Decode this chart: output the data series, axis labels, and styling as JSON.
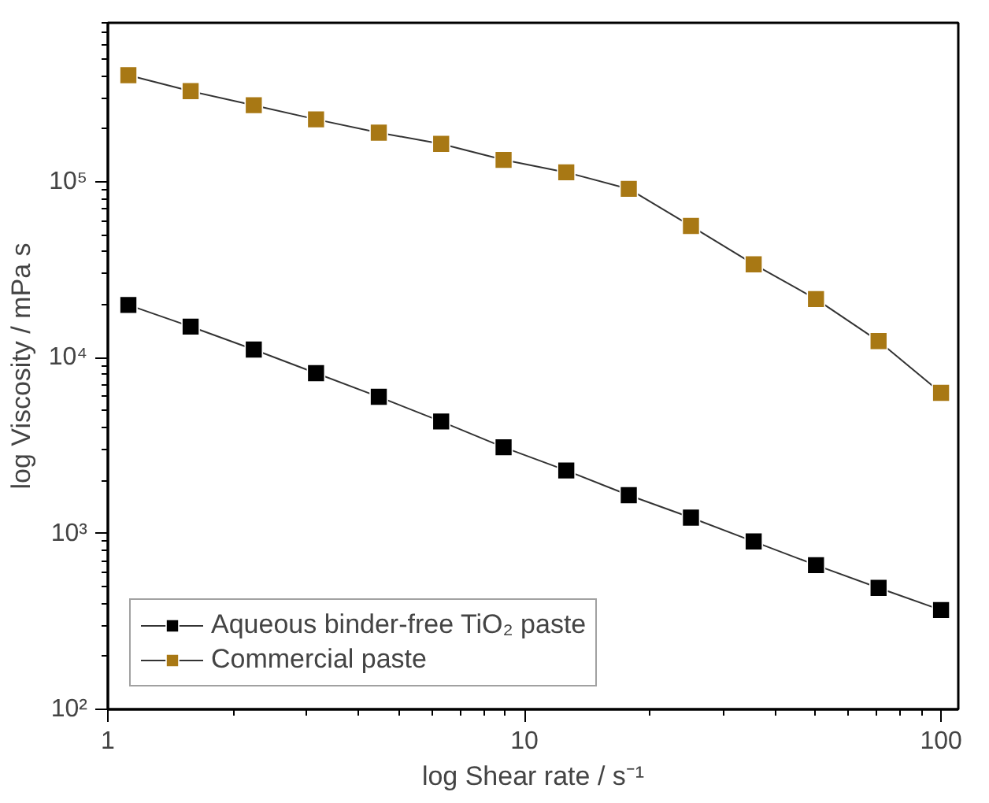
{
  "chart_data": {
    "type": "line",
    "xlabel": "log Shear rate / s⁻¹",
    "ylabel": "log Viscosity / mPa s",
    "log": "xy",
    "grid": false,
    "legend": "bottom left",
    "marker": "square",
    "line_style": "solid",
    "x": [
      1.12,
      1.58,
      2.24,
      3.16,
      4.47,
      6.31,
      8.91,
      12.6,
      17.8,
      25.1,
      35.5,
      50.1,
      70.8,
      100
    ],
    "xlim": [
      1,
      110
    ],
    "ylim": [
      100,
      800000
    ],
    "xticks": [
      1,
      10,
      100,
      {
        "value": 2,
        "label": null
      },
      {
        "value": 3,
        "label": null
      },
      {
        "value": 4,
        "label": null
      },
      {
        "value": 5,
        "label": null
      },
      {
        "value": 6,
        "label": null
      },
      {
        "value": 7,
        "label": null
      },
      {
        "value": 8,
        "label": null
      },
      {
        "value": 9,
        "label": null
      },
      {
        "value": 20,
        "label": null
      },
      {
        "value": 30,
        "label": null
      },
      {
        "value": 40,
        "label": null
      },
      {
        "value": 50,
        "label": null
      },
      {
        "value": 60,
        "label": null
      },
      {
        "value": 70,
        "label": null
      },
      {
        "value": 80,
        "label": null
      },
      {
        "value": 90,
        "label": null
      }
    ],
    "yticks": [
      {
        "value": 100,
        "label": "10²"
      },
      {
        "value": 1000,
        "label": "10³"
      },
      {
        "value": 10000,
        "label": "10⁴"
      },
      {
        "value": 100000,
        "label": "10⁵"
      },
      {
        "value": 200,
        "label": null
      },
      {
        "value": 300,
        "label": null
      },
      {
        "value": 400,
        "label": null
      },
      {
        "value": 500,
        "label": null
      },
      {
        "value": 600,
        "label": null
      },
      {
        "value": 700,
        "label": null
      },
      {
        "value": 800,
        "label": null
      },
      {
        "value": 900,
        "label": null
      },
      {
        "value": 2000,
        "label": null
      },
      {
        "value": 3000,
        "label": null
      },
      {
        "value": 4000,
        "label": null
      },
      {
        "value": 5000,
        "label": null
      },
      {
        "value": 6000,
        "label": null
      },
      {
        "value": 7000,
        "label": null
      },
      {
        "value": 8000,
        "label": null
      },
      {
        "value": 9000,
        "label": null
      },
      {
        "value": 20000,
        "label": null
      },
      {
        "value": 30000,
        "label": null
      },
      {
        "value": 40000,
        "label": null
      },
      {
        "value": 50000,
        "label": null
      },
      {
        "value": 60000,
        "label": null
      },
      {
        "value": 70000,
        "label": null
      },
      {
        "value": 80000,
        "label": null
      },
      {
        "value": 90000,
        "label": null
      },
      {
        "value": 200000,
        "label": null
      },
      {
        "value": 300000,
        "label": null
      },
      {
        "value": 400000,
        "label": null
      },
      {
        "value": 500000,
        "label": null
      },
      {
        "value": 600000,
        "label": null
      },
      {
        "value": 700000,
        "label": null
      },
      {
        "value": 800000,
        "label": null
      }
    ],
    "series": [
      {
        "name": "Aqueous binder-free TiO₂ paste",
        "color": "#000000",
        "values": [
          19900,
          15000,
          11100,
          8150,
          5980,
          4330,
          3090,
          2280,
          1650,
          1230,
          900,
          660,
          490,
          367
        ]
      },
      {
        "name": "Commercial paste",
        "color": "#a87814",
        "values": [
          403000,
          327000,
          272000,
          226000,
          190000,
          164000,
          133000,
          113000,
          91000,
          56000,
          33900,
          21500,
          12400,
          6300
        ]
      }
    ]
  }
}
